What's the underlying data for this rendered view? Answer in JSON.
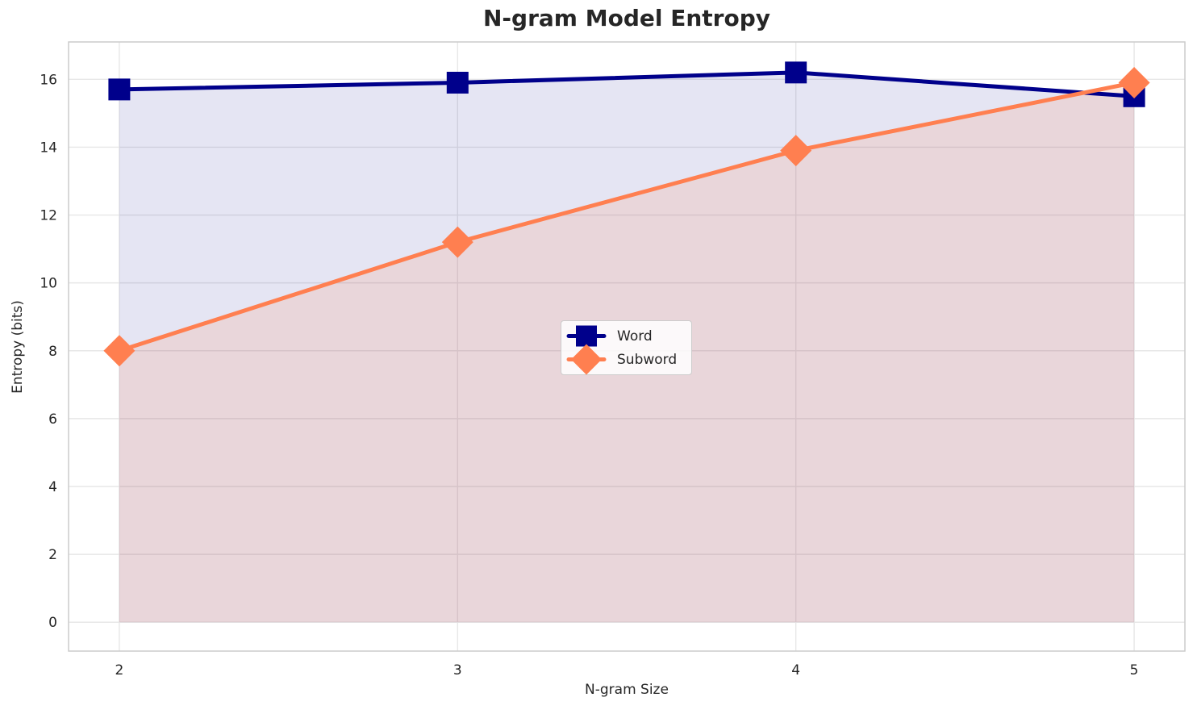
{
  "chart_data": {
    "type": "line",
    "title": "N-gram Model Entropy",
    "xlabel": "N-gram Size",
    "ylabel": "Entropy (bits)",
    "x": [
      2,
      3,
      4,
      5
    ],
    "series": [
      {
        "name": "Word",
        "values": [
          15.7,
          15.9,
          16.2,
          15.5
        ],
        "color": "#00008B",
        "marker": "square",
        "fill_opacity": 0.1
      },
      {
        "name": "Subword",
        "values": [
          8.0,
          11.2,
          13.9,
          15.9
        ],
        "color": "#FF7F50",
        "marker": "diamond",
        "fill_opacity": 0.15
      }
    ],
    "xticks": [
      2,
      3,
      4,
      5
    ],
    "yticks": [
      0,
      2,
      4,
      6,
      8,
      10,
      12,
      14,
      16
    ],
    "xlim": [
      1.85,
      5.15
    ],
    "ylim": [
      -0.85,
      17.1
    ],
    "fill_baseline": 0,
    "grid": true,
    "legend_position": "center",
    "style": {
      "grid_color": "#E7E7E7",
      "spine_color": "#CCCCCC",
      "text_color": "#262626",
      "line_width": 5
    }
  }
}
